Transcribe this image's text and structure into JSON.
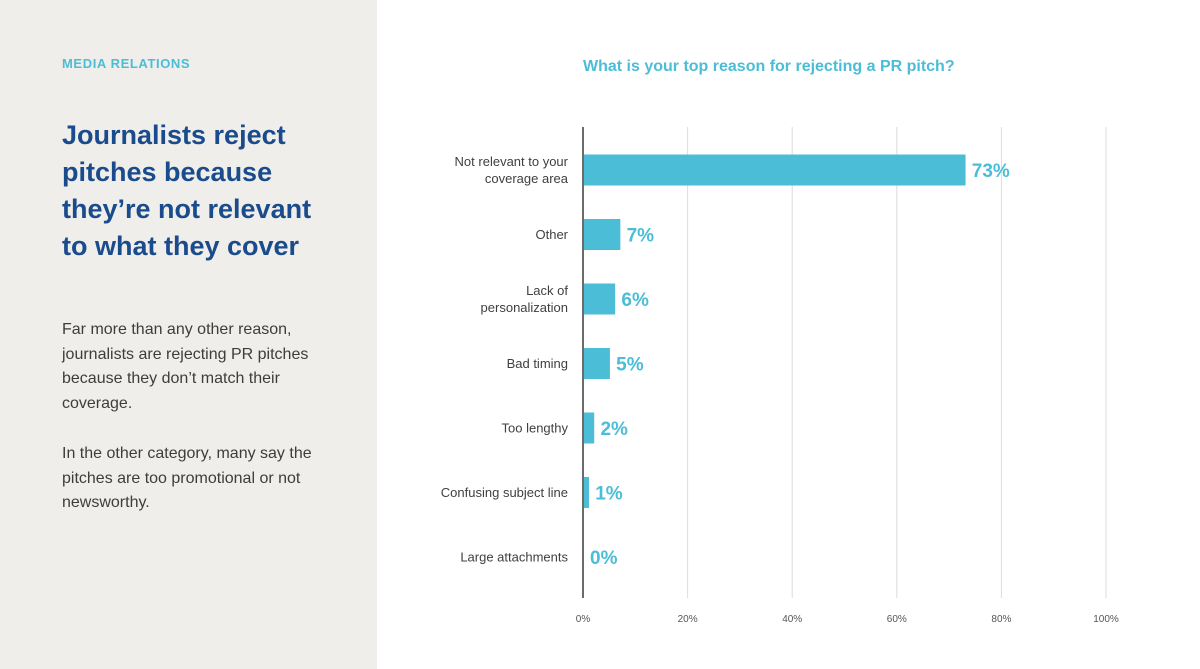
{
  "left_panel": {
    "eyebrow": "MEDIA RELATIONS",
    "headline": "Journalists reject pitches because they’re not relevant to what they cover",
    "paragraph_1": "Far more than any other reason, journalists are rejecting PR pitches because they don’t match their coverage.",
    "paragraph_2": "In the other category, many say the pitches are too promotional or not newsworthy."
  },
  "colors": {
    "accent": "#4bbdd6",
    "headline": "#1a4b8c",
    "panel_bg": "#efeeea",
    "bar": "#4bbdd6"
  },
  "chart_data": {
    "type": "bar",
    "orientation": "horizontal",
    "title": "What is your top reason for rejecting a PR pitch?",
    "xlabel": "",
    "ylabel": "",
    "categories": [
      [
        "Not relevant to your",
        "coverage area"
      ],
      [
        "Other"
      ],
      [
        "Lack of",
        "personalization"
      ],
      [
        "Bad timing"
      ],
      [
        "Too lengthy"
      ],
      [
        "Confusing subject line"
      ],
      [
        "Large attachments"
      ]
    ],
    "values": [
      73,
      7,
      6,
      5,
      2,
      1,
      0
    ],
    "value_labels": [
      "73%",
      "7%",
      "6%",
      "5%",
      "2%",
      "1%",
      "0%"
    ],
    "xlim": [
      0,
      100
    ],
    "x_ticks": [
      0,
      20,
      40,
      60,
      80,
      100
    ],
    "x_tick_labels": [
      "0%",
      "20%",
      "40%",
      "60%",
      "80%",
      "100%"
    ],
    "grid": true,
    "legend": "none"
  }
}
